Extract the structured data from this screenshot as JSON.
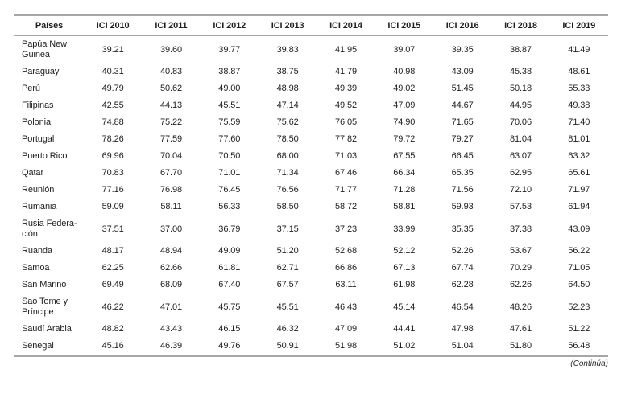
{
  "table": {
    "headers": [
      "Países",
      "ICI 2010",
      "ICI 2011",
      "ICI 2012",
      "ICI 2013",
      "ICI 2014",
      "ICI 2015",
      "ICI 2016",
      "ICI 2018",
      "ICI 2019"
    ],
    "rows": [
      [
        "Papúa New Guinea",
        "39.21",
        "39.60",
        "39.77",
        "39.83",
        "41.95",
        "39.07",
        "39.35",
        "38.87",
        "41.49"
      ],
      [
        "Paraguay",
        "40.31",
        "40.83",
        "38.87",
        "38.75",
        "41.79",
        "40.98",
        "43.09",
        "45.38",
        "48.61"
      ],
      [
        "Perú",
        "49.79",
        "50.62",
        "49.00",
        "48.98",
        "49.39",
        "49.02",
        "51.45",
        "50.18",
        "55.33"
      ],
      [
        "Filipinas",
        "42.55",
        "44.13",
        "45.51",
        "47.14",
        "49.52",
        "47.09",
        "44.67",
        "44.95",
        "49.38"
      ],
      [
        "Polonia",
        "74.88",
        "75.22",
        "75.59",
        "75.62",
        "76.05",
        "74.90",
        "71.65",
        "70.06",
        "71.40"
      ],
      [
        "Portugal",
        "78.26",
        "77.59",
        "77.60",
        "78.50",
        "77.82",
        "79.72",
        "79.27",
        "81.04",
        "81.01"
      ],
      [
        "Puerto Rico",
        "69.96",
        "70.04",
        "70.50",
        "68.00",
        "71.03",
        "67.55",
        "66.45",
        "63.07",
        "63.32"
      ],
      [
        "Qatar",
        "70.83",
        "67.70",
        "71.01",
        "71.34",
        "67.46",
        "66.34",
        "65.35",
        "62.95",
        "65.61"
      ],
      [
        "Reunión",
        "77.16",
        "76.98",
        "76.45",
        "76.56",
        "71.77",
        "71.28",
        "71.56",
        "72.10",
        "71.97"
      ],
      [
        "Rumania",
        "59.09",
        "58.11",
        "56.33",
        "58.50",
        "58.72",
        "58.81",
        "59.93",
        "57.53",
        "61.94"
      ],
      [
        "Rusia Federa­ción",
        "37.51",
        "37.00",
        "36.79",
        "37.15",
        "37.23",
        "33.99",
        "35.35",
        "37.38",
        "43.09"
      ],
      [
        "Ruanda",
        "48.17",
        "48.94",
        "49.09",
        "51.20",
        "52.68",
        "52.12",
        "52.26",
        "53.67",
        "56.22"
      ],
      [
        "Samoa",
        "62.25",
        "62.66",
        "61.81",
        "62.71",
        "66.86",
        "67.13",
        "67.74",
        "70.29",
        "71.05"
      ],
      [
        "San Marino",
        "69.49",
        "68.09",
        "67.40",
        "67.57",
        "63.11",
        "61.98",
        "62.28",
        "62.26",
        "64.50"
      ],
      [
        "Sao Tome y Príncipe",
        "46.22",
        "47.01",
        "45.75",
        "45.51",
        "46.43",
        "45.14",
        "46.54",
        "48.26",
        "52.23"
      ],
      [
        "Saudí Arabia",
        "48.82",
        "43.43",
        "46.15",
        "46.32",
        "47.09",
        "44.41",
        "47.98",
        "47.61",
        "51.22"
      ],
      [
        "Senegal",
        "45.16",
        "46.39",
        "49.76",
        "50.91",
        "51.98",
        "51.02",
        "51.04",
        "51.80",
        "56.48"
      ]
    ]
  },
  "footer": {
    "continua": "(Continúa)"
  },
  "colors": {
    "rule": "#a6a6a6",
    "text": "#1f1f1f"
  }
}
